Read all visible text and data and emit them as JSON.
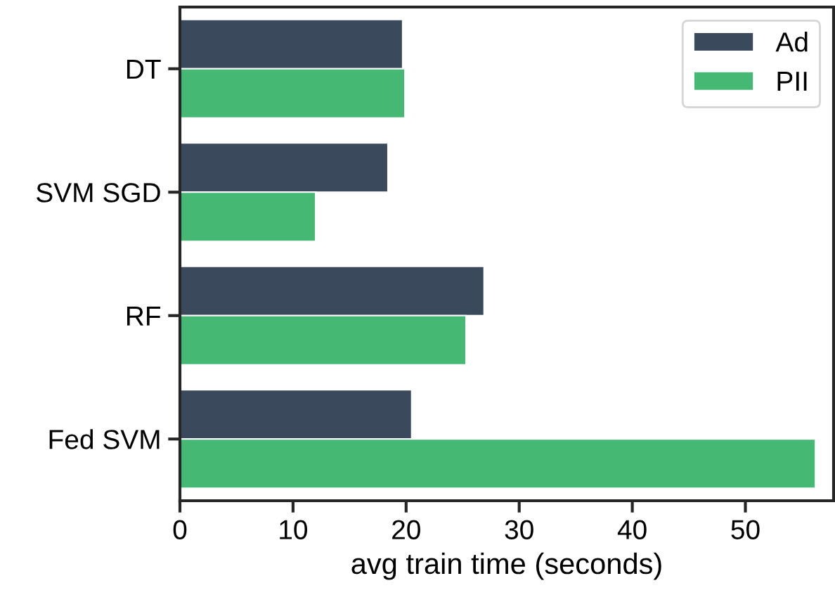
{
  "chart_data": {
    "type": "bar",
    "orientation": "horizontal",
    "xlabel": "avg train time (seconds)",
    "categories": [
      "DT",
      "SVM SGD",
      "RF",
      "Fed SVM"
    ],
    "series": [
      {
        "name": "Ad",
        "color": "#3a4a5c",
        "values": [
          19.7,
          18.4,
          26.9,
          20.5
        ]
      },
      {
        "name": "PII",
        "color": "#45b874",
        "values": [
          19.9,
          12.0,
          25.3,
          56.2
        ]
      }
    ],
    "xlim": [
      0,
      57.8
    ],
    "xticks": [
      0,
      10,
      20,
      30,
      40,
      50
    ],
    "grid": false,
    "legend": "top right"
  }
}
